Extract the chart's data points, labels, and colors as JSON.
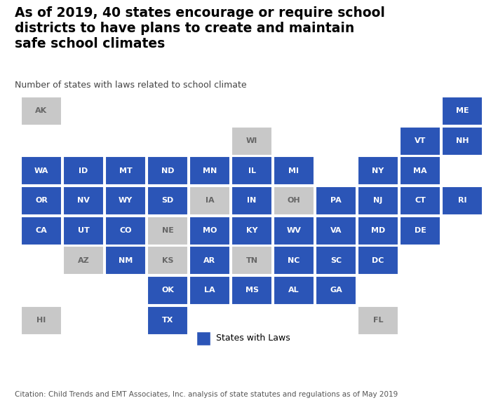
{
  "title_line1": "As of 2019, 40 states encourage or require school",
  "title_line2": "districts to have plans to create and maintain",
  "title_line3": "safe school climates",
  "subtitle": "Number of states with laws related to school climate",
  "citation": "Citation: Child Trends and EMT Associates, Inc. analysis of state statutes and regulations as of May 2019",
  "blue_color": "#2B55B7",
  "gray_color": "#C8C8C8",
  "text_blue": "#FFFFFF",
  "text_gray": "#666666",
  "background": "#FFFFFF",
  "legend_label": "States with Laws",
  "states": [
    {
      "abbr": "AK",
      "col": 0,
      "row": 0,
      "has_law": false
    },
    {
      "abbr": "ME",
      "col": 10,
      "row": 0,
      "has_law": true
    },
    {
      "abbr": "WI",
      "col": 5,
      "row": 1,
      "has_law": false
    },
    {
      "abbr": "VT",
      "col": 9,
      "row": 1,
      "has_law": true
    },
    {
      "abbr": "NH",
      "col": 10,
      "row": 1,
      "has_law": true
    },
    {
      "abbr": "WA",
      "col": 0,
      "row": 2,
      "has_law": true
    },
    {
      "abbr": "ID",
      "col": 1,
      "row": 2,
      "has_law": true
    },
    {
      "abbr": "MT",
      "col": 2,
      "row": 2,
      "has_law": true
    },
    {
      "abbr": "ND",
      "col": 3,
      "row": 2,
      "has_law": true
    },
    {
      "abbr": "MN",
      "col": 4,
      "row": 2,
      "has_law": true
    },
    {
      "abbr": "IL",
      "col": 5,
      "row": 2,
      "has_law": true
    },
    {
      "abbr": "MI",
      "col": 6,
      "row": 2,
      "has_law": true
    },
    {
      "abbr": "NY",
      "col": 8,
      "row": 2,
      "has_law": true
    },
    {
      "abbr": "MA",
      "col": 9,
      "row": 2,
      "has_law": true
    },
    {
      "abbr": "OR",
      "col": 0,
      "row": 3,
      "has_law": true
    },
    {
      "abbr": "NV",
      "col": 1,
      "row": 3,
      "has_law": true
    },
    {
      "abbr": "WY",
      "col": 2,
      "row": 3,
      "has_law": true
    },
    {
      "abbr": "SD",
      "col": 3,
      "row": 3,
      "has_law": true
    },
    {
      "abbr": "IA",
      "col": 4,
      "row": 3,
      "has_law": false
    },
    {
      "abbr": "IN",
      "col": 5,
      "row": 3,
      "has_law": true
    },
    {
      "abbr": "OH",
      "col": 6,
      "row": 3,
      "has_law": false
    },
    {
      "abbr": "PA",
      "col": 7,
      "row": 3,
      "has_law": true
    },
    {
      "abbr": "NJ",
      "col": 8,
      "row": 3,
      "has_law": true
    },
    {
      "abbr": "CT",
      "col": 9,
      "row": 3,
      "has_law": true
    },
    {
      "abbr": "RI",
      "col": 10,
      "row": 3,
      "has_law": true
    },
    {
      "abbr": "CA",
      "col": 0,
      "row": 4,
      "has_law": true
    },
    {
      "abbr": "UT",
      "col": 1,
      "row": 4,
      "has_law": true
    },
    {
      "abbr": "CO",
      "col": 2,
      "row": 4,
      "has_law": true
    },
    {
      "abbr": "NE",
      "col": 3,
      "row": 4,
      "has_law": false
    },
    {
      "abbr": "MO",
      "col": 4,
      "row": 4,
      "has_law": true
    },
    {
      "abbr": "KY",
      "col": 5,
      "row": 4,
      "has_law": true
    },
    {
      "abbr": "WV",
      "col": 6,
      "row": 4,
      "has_law": true
    },
    {
      "abbr": "VA",
      "col": 7,
      "row": 4,
      "has_law": true
    },
    {
      "abbr": "MD",
      "col": 8,
      "row": 4,
      "has_law": true
    },
    {
      "abbr": "DE",
      "col": 9,
      "row": 4,
      "has_law": true
    },
    {
      "abbr": "AZ",
      "col": 1,
      "row": 5,
      "has_law": false
    },
    {
      "abbr": "NM",
      "col": 2,
      "row": 5,
      "has_law": true
    },
    {
      "abbr": "KS",
      "col": 3,
      "row": 5,
      "has_law": false
    },
    {
      "abbr": "AR",
      "col": 4,
      "row": 5,
      "has_law": true
    },
    {
      "abbr": "TN",
      "col": 5,
      "row": 5,
      "has_law": false
    },
    {
      "abbr": "NC",
      "col": 6,
      "row": 5,
      "has_law": true
    },
    {
      "abbr": "SC",
      "col": 7,
      "row": 5,
      "has_law": true
    },
    {
      "abbr": "DC",
      "col": 8,
      "row": 5,
      "has_law": true
    },
    {
      "abbr": "OK",
      "col": 3,
      "row": 6,
      "has_law": true
    },
    {
      "abbr": "LA",
      "col": 4,
      "row": 6,
      "has_law": true
    },
    {
      "abbr": "MS",
      "col": 5,
      "row": 6,
      "has_law": true
    },
    {
      "abbr": "AL",
      "col": 6,
      "row": 6,
      "has_law": true
    },
    {
      "abbr": "GA",
      "col": 7,
      "row": 6,
      "has_law": true
    },
    {
      "abbr": "HI",
      "col": 0,
      "row": 7,
      "has_law": false
    },
    {
      "abbr": "TX",
      "col": 3,
      "row": 7,
      "has_law": true
    },
    {
      "abbr": "FL",
      "col": 8,
      "row": 7,
      "has_law": false
    }
  ],
  "figw": 7.0,
  "figh": 5.78,
  "dpi": 100
}
